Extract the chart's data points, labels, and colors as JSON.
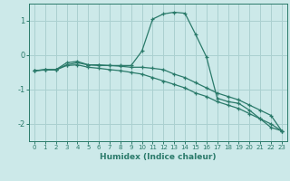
{
  "x": [
    0,
    1,
    2,
    3,
    4,
    5,
    6,
    7,
    8,
    9,
    10,
    11,
    12,
    13,
    14,
    15,
    16,
    17,
    18,
    19,
    20,
    21,
    22,
    23
  ],
  "line1": [
    -0.45,
    -0.42,
    -0.42,
    -0.28,
    -0.22,
    -0.28,
    -0.28,
    -0.3,
    -0.3,
    -0.3,
    0.12,
    1.05,
    1.2,
    1.25,
    1.22,
    0.6,
    -0.05,
    -1.25,
    -1.35,
    -1.4,
    -1.6,
    -1.85,
    -2.1,
    -2.2
  ],
  "line2": [
    -0.45,
    -0.42,
    -0.42,
    -0.22,
    -0.18,
    -0.28,
    -0.3,
    -0.3,
    -0.32,
    -0.35,
    -0.35,
    -0.38,
    -0.42,
    -0.55,
    -0.65,
    -0.8,
    -0.95,
    -1.1,
    -1.2,
    -1.3,
    -1.45,
    -1.6,
    -1.75,
    -2.2
  ],
  "line3": [
    -0.45,
    -0.43,
    -0.43,
    -0.3,
    -0.28,
    -0.35,
    -0.38,
    -0.42,
    -0.45,
    -0.5,
    -0.55,
    -0.65,
    -0.75,
    -0.85,
    -0.95,
    -1.1,
    -1.2,
    -1.35,
    -1.45,
    -1.55,
    -1.7,
    -1.85,
    -2.0,
    -2.2
  ],
  "bg_color": "#cce9e9",
  "grid_color": "#aad0d0",
  "line_color": "#2a7a6a",
  "xlabel": "Humidex (Indice chaleur)",
  "ylim": [
    -2.5,
    1.5
  ],
  "xlim": [
    -0.5,
    23.5
  ],
  "yticks": [
    -2,
    -1,
    0,
    1
  ],
  "xticks": [
    0,
    1,
    2,
    3,
    4,
    5,
    6,
    7,
    8,
    9,
    10,
    11,
    12,
    13,
    14,
    15,
    16,
    17,
    18,
    19,
    20,
    21,
    22,
    23
  ],
  "xlabel_fontsize": 6.5,
  "xtick_fontsize": 5.0,
  "ytick_fontsize": 6.0
}
